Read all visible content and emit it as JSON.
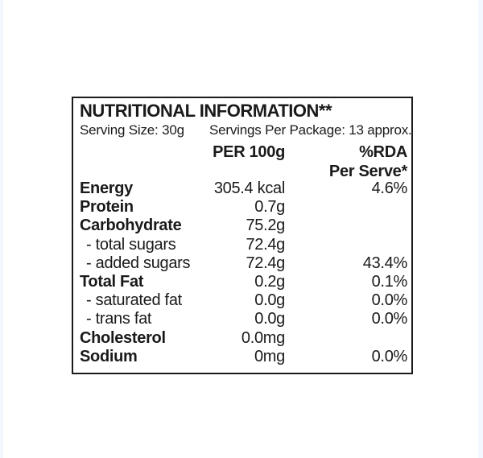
{
  "theme": {
    "ink": "#1a1a1a",
    "edge_band": "#f3f7fe",
    "background": "#ffffff"
  },
  "label": {
    "title": "NUTRITIONAL INFORMATION**",
    "serving_size": "Serving Size: 30g",
    "servings_per_package": "Servings Per Package: 13 approx.",
    "columns": {
      "per_100g": "PER 100g",
      "rda": "%RDA",
      "rda_sub": "Per Serve*"
    },
    "rows": [
      {
        "name": "Energy",
        "per_100g": "305.4 kcal",
        "rda_per_serve": "4.6%"
      },
      {
        "name": "Protein",
        "per_100g": "0.7g",
        "rda_per_serve": ""
      },
      {
        "name": "Carbohydrate",
        "per_100g": "75.2g",
        "rda_per_serve": ""
      },
      {
        "name": "- total sugars",
        "per_100g": "72.4g",
        "rda_per_serve": ""
      },
      {
        "name": "- added sugars",
        "per_100g": "72.4g",
        "rda_per_serve": "43.4%"
      },
      {
        "name": "Total Fat",
        "per_100g": "0.2g",
        "rda_per_serve": "0.1%"
      },
      {
        "name": "- saturated fat",
        "per_100g": "0.0g",
        "rda_per_serve": "0.0%"
      },
      {
        "name": "- trans fat",
        "per_100g": "0.0g",
        "rda_per_serve": "0.0%"
      },
      {
        "name": "Cholesterol",
        "per_100g": "0.0mg",
        "rda_per_serve": ""
      },
      {
        "name": "Sodium",
        "per_100g": "0mg",
        "rda_per_serve": "0.0%"
      }
    ]
  }
}
